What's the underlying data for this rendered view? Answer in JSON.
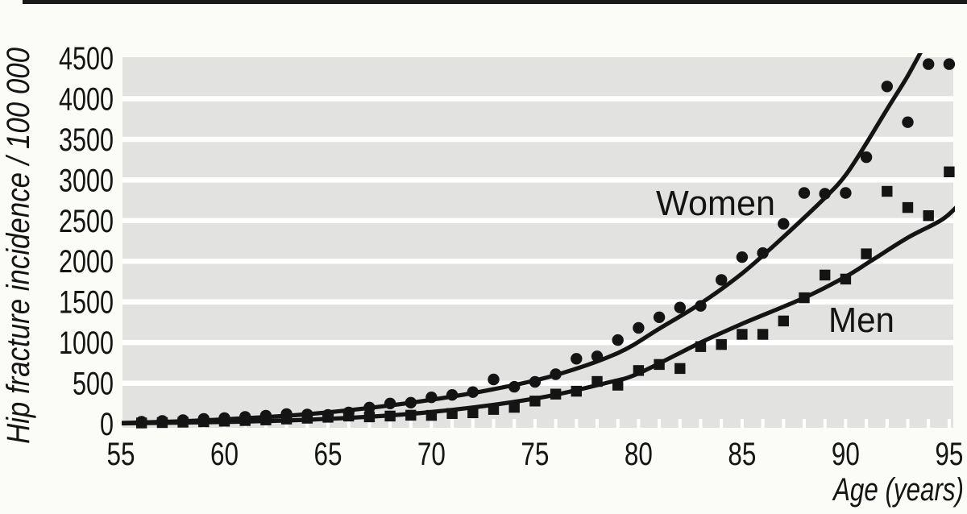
{
  "page": {
    "background": "#fbfbf7",
    "top_rule_color": "#191919"
  },
  "chart_data": {
    "type": "scatter",
    "title": "",
    "xlabel": "Age (years)",
    "ylabel": "Hip fracture incidence / 100 000",
    "x_ticks": [
      55,
      60,
      65,
      70,
      75,
      80,
      85,
      90,
      95
    ],
    "y_ticks": [
      0,
      500,
      1000,
      1500,
      2000,
      2500,
      3000,
      3500,
      4000,
      4500
    ],
    "xlim": [
      55,
      95.2
    ],
    "ylim": [
      0,
      4510
    ],
    "grid": "horizontal white gridlines every 500 on gray panel; white minor tick notches each year along bottom edge",
    "legend_position": "inline labels next to fitted curves",
    "plot_bg_color": "#e2e2e0",
    "gridline_color": "#ffffff",
    "ink_color": "#141414",
    "series": [
      {
        "name": "Women",
        "marker": "circle",
        "x": [
          56,
          57,
          58,
          59,
          60,
          61,
          62,
          63,
          64,
          65,
          66,
          67,
          68,
          69,
          70,
          71,
          72,
          73,
          74,
          75,
          76,
          77,
          78,
          79,
          80,
          81,
          82,
          83,
          84,
          85,
          86,
          87,
          88,
          89,
          90,
          91,
          92,
          93,
          94,
          95
        ],
        "y": [
          25,
          35,
          45,
          60,
          70,
          85,
          100,
          120,
          115,
          110,
          140,
          200,
          250,
          260,
          325,
          355,
          390,
          545,
          455,
          515,
          610,
          800,
          830,
          1030,
          1180,
          1310,
          1430,
          1450,
          1770,
          2050,
          2100,
          2460,
          2840,
          2830,
          2840,
          3280,
          4150,
          3710,
          4425,
          4425
        ]
      },
      {
        "name": "Men",
        "marker": "square",
        "x": [
          56,
          57,
          58,
          59,
          60,
          61,
          62,
          63,
          64,
          65,
          66,
          67,
          68,
          69,
          70,
          71,
          72,
          73,
          74,
          75,
          76,
          77,
          78,
          79,
          80,
          81,
          82,
          83,
          84,
          85,
          86,
          87,
          88,
          89,
          90,
          91,
          92,
          93,
          94,
          95
        ],
        "y": [
          10,
          15,
          20,
          25,
          32,
          40,
          48,
          58,
          68,
          80,
          95,
          85,
          95,
          105,
          103,
          126,
          136,
          176,
          202,
          280,
          365,
          400,
          520,
          475,
          655,
          730,
          680,
          950,
          975,
          1100,
          1100,
          1265,
          1550,
          1830,
          1780,
          2090,
          2860,
          2660,
          2560,
          3100
        ]
      }
    ],
    "fit_curves": [
      {
        "name": "Women fit",
        "points": [
          [
            55,
            10
          ],
          [
            58,
            32
          ],
          [
            61,
            68
          ],
          [
            64,
            118
          ],
          [
            67,
            195
          ],
          [
            70,
            295
          ],
          [
            73,
            425
          ],
          [
            76,
            600
          ],
          [
            79,
            870
          ],
          [
            81,
            1170
          ],
          [
            83,
            1480
          ],
          [
            85,
            1850
          ],
          [
            87,
            2300
          ],
          [
            89,
            2780
          ],
          [
            90,
            3060
          ],
          [
            91,
            3450
          ],
          [
            92,
            3870
          ],
          [
            93,
            4280
          ],
          [
            94,
            4750
          ]
        ]
      },
      {
        "name": "Men fit",
        "points": [
          [
            55,
            5
          ],
          [
            60,
            22
          ],
          [
            65,
            60
          ],
          [
            70,
            145
          ],
          [
            75,
            310
          ],
          [
            78.4,
            500
          ],
          [
            80,
            620
          ],
          [
            83,
            1000
          ],
          [
            85,
            1230
          ],
          [
            88,
            1550
          ],
          [
            90,
            1810
          ],
          [
            91.2,
            2000
          ],
          [
            93,
            2290
          ],
          [
            94.7,
            2520
          ],
          [
            95.7,
            2760
          ]
        ]
      }
    ]
  }
}
